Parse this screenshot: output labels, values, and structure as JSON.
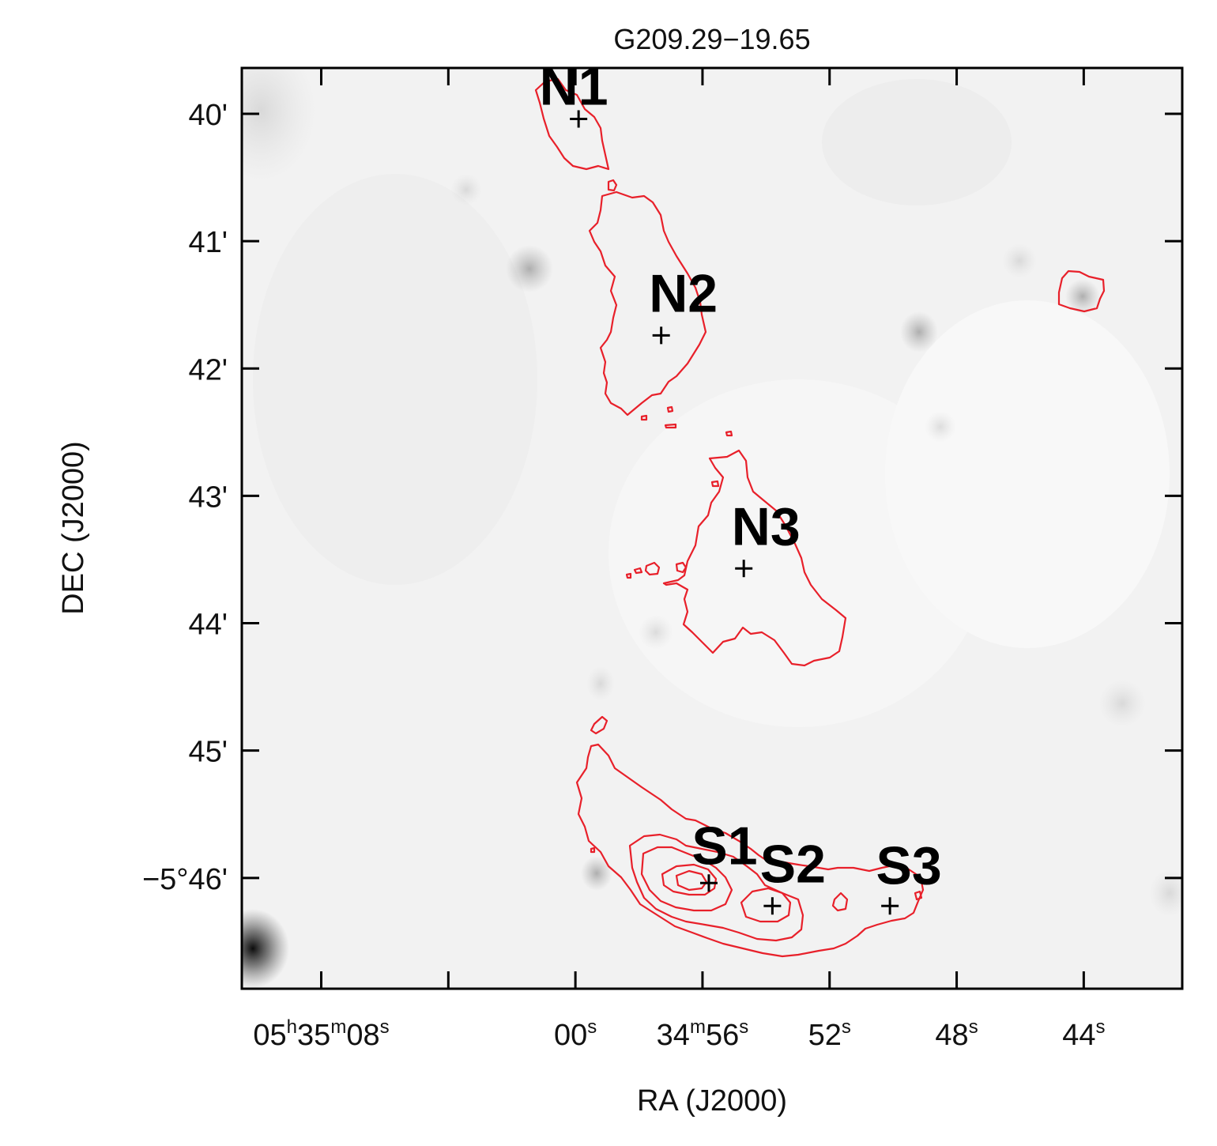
{
  "chart_data": {
    "type": "contour-map",
    "title": "G209.29−19.65",
    "xlabel": "RA (J2000)",
    "ylabel": "DEC (J2000)",
    "x_ticks": [
      {
        "hms_s": 68.0,
        "parts": [
          "05",
          "h",
          "35",
          "m",
          "08",
          "s"
        ]
      },
      {
        "hms_s": 60.0,
        "parts": [
          "00",
          "s"
        ]
      },
      {
        "hms_s": 56.0,
        "parts": [
          "34",
          "m",
          "56",
          "s"
        ]
      },
      {
        "hms_s": 52.0,
        "parts": [
          "52",
          "s"
        ]
      },
      {
        "hms_s": 48.0,
        "parts": [
          "48",
          "s"
        ]
      },
      {
        "hms_s": 44.0,
        "parts": [
          "44",
          "s"
        ]
      }
    ],
    "x_minor_ticks_s": [
      64.0
    ],
    "xlim_s": [
      70.5,
      40.9
    ],
    "y_ticks": [
      {
        "arcmin": -40,
        "label": "40'"
      },
      {
        "arcmin": -41,
        "label": "41'"
      },
      {
        "arcmin": -42,
        "label": "42'"
      },
      {
        "arcmin": -43,
        "label": "43'"
      },
      {
        "arcmin": -44,
        "label": "44'"
      },
      {
        "arcmin": -45,
        "label": "45'"
      },
      {
        "arcmin": -46,
        "label": "−5°46'"
      }
    ],
    "ylim_arcmin": [
      -46.87,
      -39.64
    ],
    "contour_color": "#e8202a",
    "background": "grayscale",
    "sources": [
      {
        "name": "N1",
        "ra_s": 59.9,
        "dec_arcmin": -40.04
      },
      {
        "name": "N2",
        "ra_s": 57.3,
        "dec_arcmin": -41.74
      },
      {
        "name": "N3",
        "ra_s": 54.7,
        "dec_arcmin": -43.57
      },
      {
        "name": "S1",
        "ra_s": 55.8,
        "dec_arcmin": -46.04
      },
      {
        "name": "S2",
        "ra_s": 53.8,
        "dec_arcmin": -46.22
      },
      {
        "name": "S3",
        "ra_s": 50.1,
        "dec_arcmin": -46.22
      }
    ]
  }
}
